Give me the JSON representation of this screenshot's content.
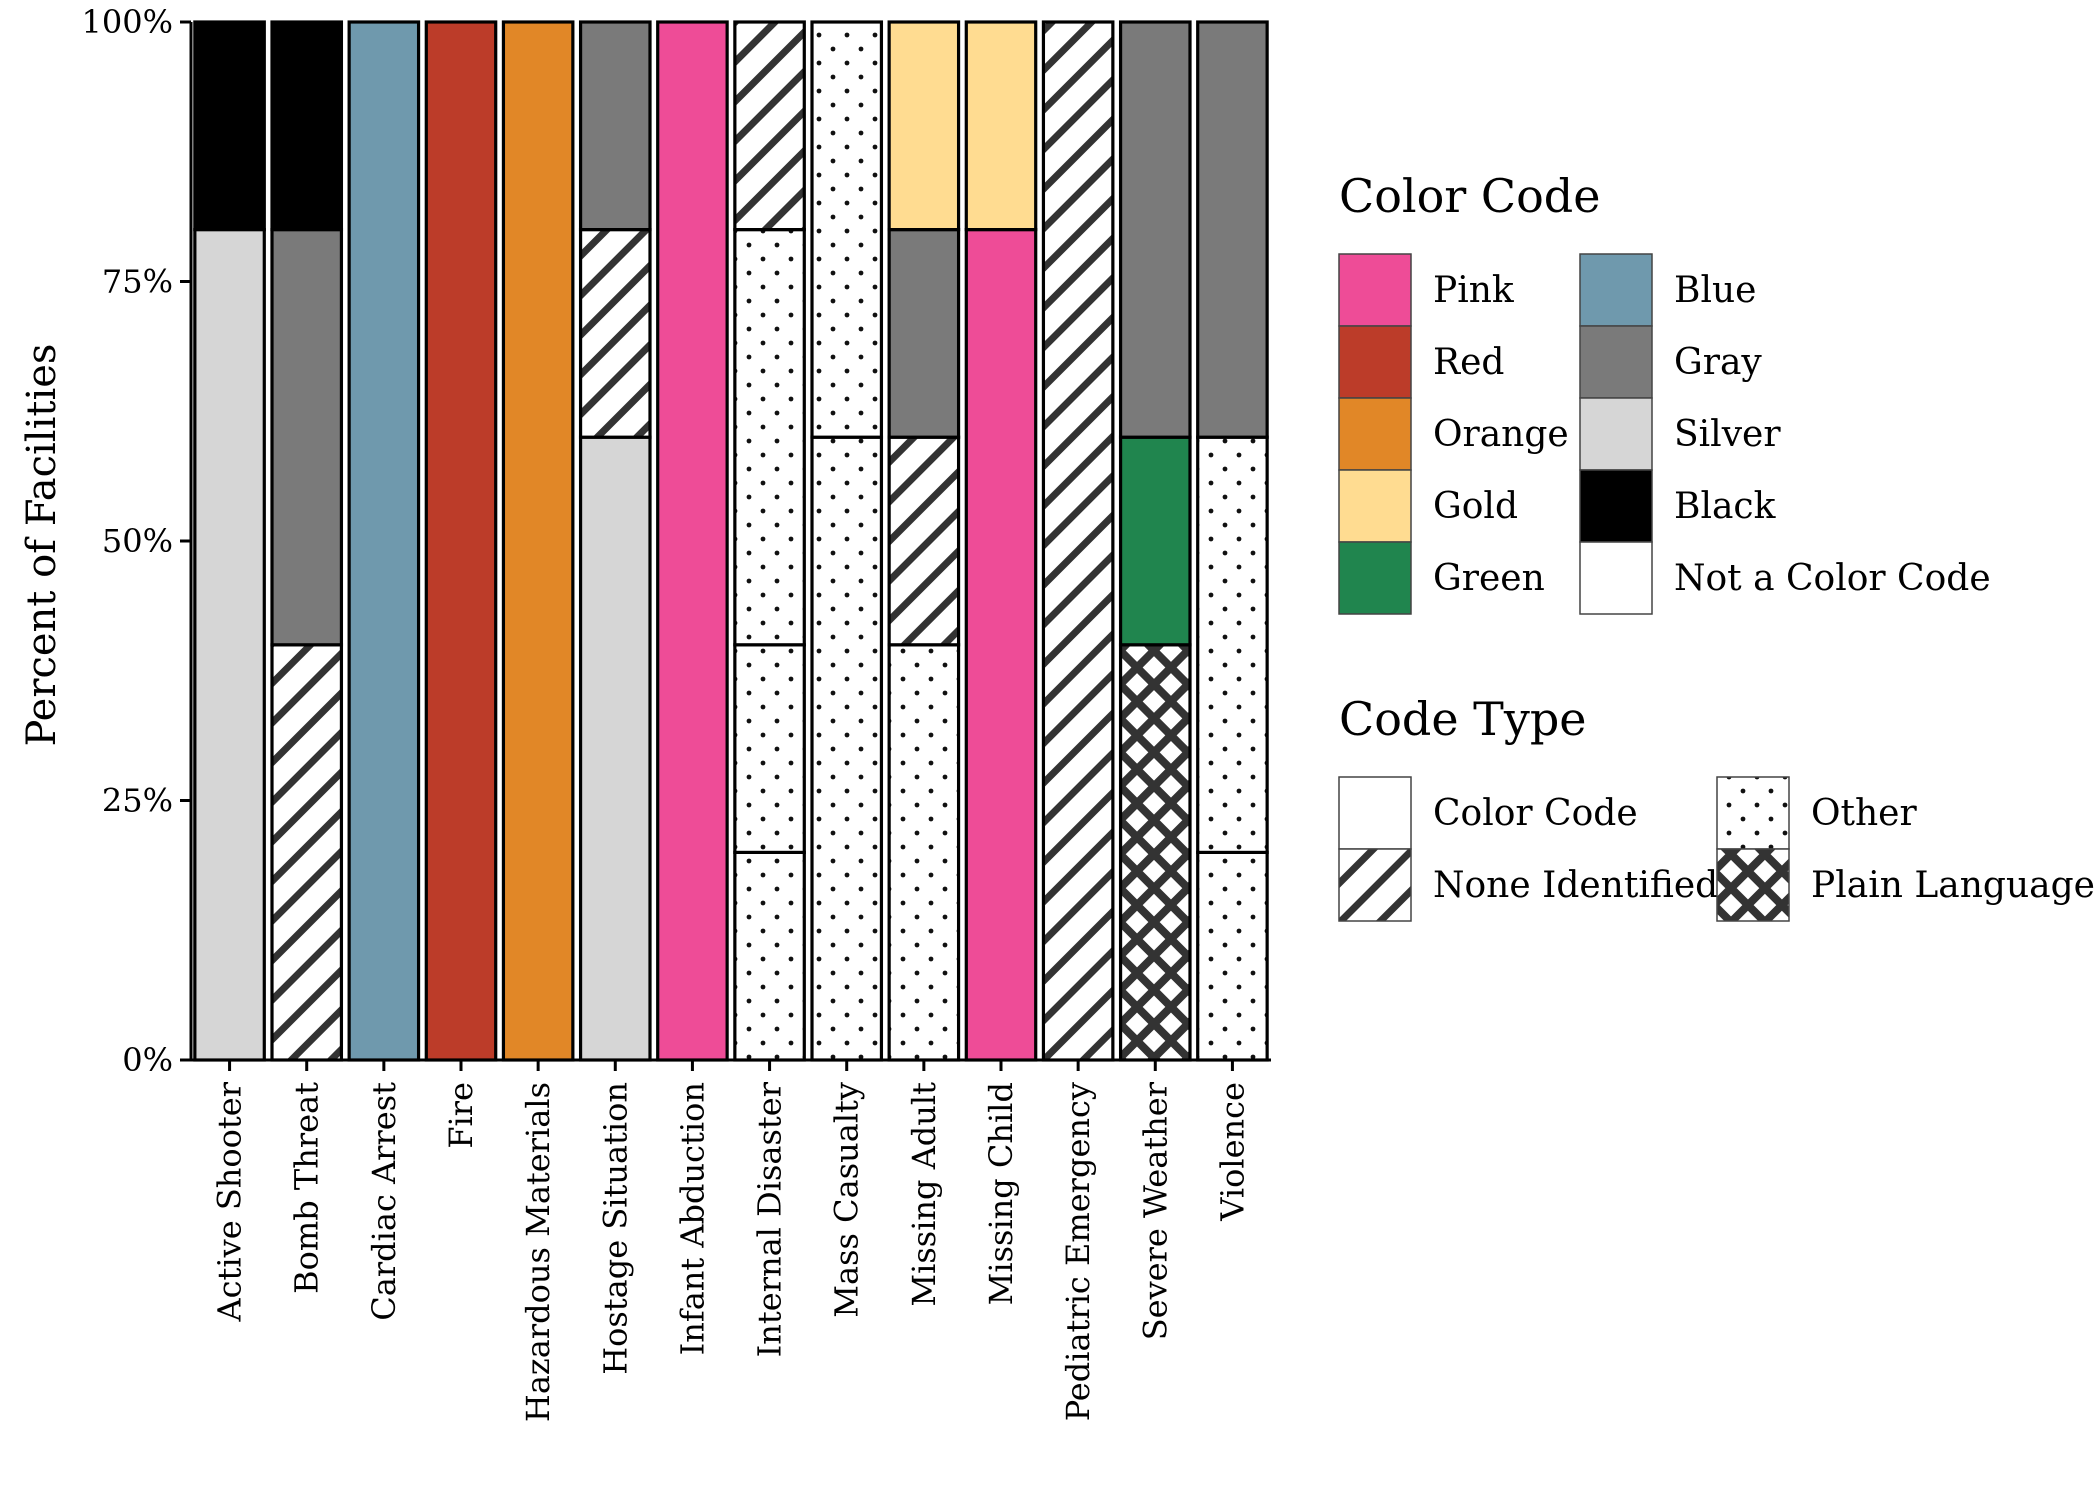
{
  "chart_data": {
    "type": "bar",
    "stacked": true,
    "title": "",
    "xlabel": "",
    "ylabel": "Percent of Facilities",
    "ylim": [
      0,
      100
    ],
    "yticks": [
      "0%",
      "25%",
      "50%",
      "75%",
      "100%"
    ],
    "categories": [
      "Active Shooter",
      "Bomb Threat",
      "Cardiac Arrest",
      "Fire",
      "Hazardous Materials",
      "Hostage Situation",
      "Infant Abduction",
      "Internal Disaster",
      "Mass Casualty",
      "Missing Adult",
      "Missing Child",
      "Pediatric Emergency",
      "Severe Weather",
      "Violence"
    ],
    "colors": {
      "Pink": "#ee4c97",
      "Red": "#bc3c29",
      "Orange": "#e18727",
      "Gold": "#ffdc91",
      "Green": "#20854e",
      "Blue": "#6f99ad",
      "Gray": "#7a7a7a",
      "Silver": "#d6d6d6",
      "Black": "#000000",
      "Not a Color Code": "#ffffff"
    },
    "stacks": [
      [
        {
          "color": "Silver",
          "type": "Color Code",
          "value": 80
        },
        {
          "color": "Black",
          "type": "Color Code",
          "value": 20
        }
      ],
      [
        {
          "color": "Not a Color Code",
          "type": "None Identified",
          "value": 40
        },
        {
          "color": "Gray",
          "type": "Color Code",
          "value": 40
        },
        {
          "color": "Black",
          "type": "Color Code",
          "value": 20
        }
      ],
      [
        {
          "color": "Blue",
          "type": "Color Code",
          "value": 100
        }
      ],
      [
        {
          "color": "Red",
          "type": "Color Code",
          "value": 100
        }
      ],
      [
        {
          "color": "Orange",
          "type": "Color Code",
          "value": 100
        }
      ],
      [
        {
          "color": "Silver",
          "type": "Color Code",
          "value": 60
        },
        {
          "color": "Not a Color Code",
          "type": "None Identified",
          "value": 20
        },
        {
          "color": "Gray",
          "type": "Color Code",
          "value": 20
        }
      ],
      [
        {
          "color": "Pink",
          "type": "Color Code",
          "value": 100
        }
      ],
      [
        {
          "color": "Not a Color Code",
          "type": "Other",
          "value": 20
        },
        {
          "color": "Not a Color Code",
          "type": "Other",
          "value": 20
        },
        {
          "color": "Not a Color Code",
          "type": "Other",
          "value": 40
        },
        {
          "color": "Not a Color Code",
          "type": "None Identified",
          "value": 20
        }
      ],
      [
        {
          "color": "Not a Color Code",
          "type": "Other",
          "value": 60
        },
        {
          "color": "Not a Color Code",
          "type": "Other",
          "value": 40
        }
      ],
      [
        {
          "color": "Not a Color Code",
          "type": "Other",
          "value": 40
        },
        {
          "color": "Not a Color Code",
          "type": "None Identified",
          "value": 20
        },
        {
          "color": "Gray",
          "type": "Color Code",
          "value": 20
        },
        {
          "color": "Gold",
          "type": "Color Code",
          "value": 20
        }
      ],
      [
        {
          "color": "Pink",
          "type": "Color Code",
          "value": 80
        },
        {
          "color": "Gold",
          "type": "Color Code",
          "value": 20
        }
      ],
      [
        {
          "color": "Not a Color Code",
          "type": "None Identified",
          "value": 100
        }
      ],
      [
        {
          "color": "Not a Color Code",
          "type": "Plain Language",
          "value": 40
        },
        {
          "color": "Green",
          "type": "Color Code",
          "value": 20
        },
        {
          "color": "Gray",
          "type": "Color Code",
          "value": 40
        }
      ],
      [
        {
          "color": "Not a Color Code",
          "type": "Other",
          "value": 20
        },
        {
          "color": "Not a Color Code",
          "type": "Other",
          "value": 40
        },
        {
          "color": "Gray",
          "type": "Color Code",
          "value": 40
        }
      ]
    ],
    "legends": [
      {
        "title": "Color Code",
        "columns": [
          [
            "Pink",
            "Red",
            "Orange",
            "Gold",
            "Green"
          ],
          [
            "Blue",
            "Gray",
            "Silver",
            "Black",
            "Not a Color Code"
          ]
        ]
      },
      {
        "title": "Code Type",
        "columns": [
          [
            "Color Code",
            "None Identified"
          ],
          [
            "Other",
            "Plain Language"
          ]
        ]
      }
    ],
    "legend_position": "right",
    "grid": false
  }
}
